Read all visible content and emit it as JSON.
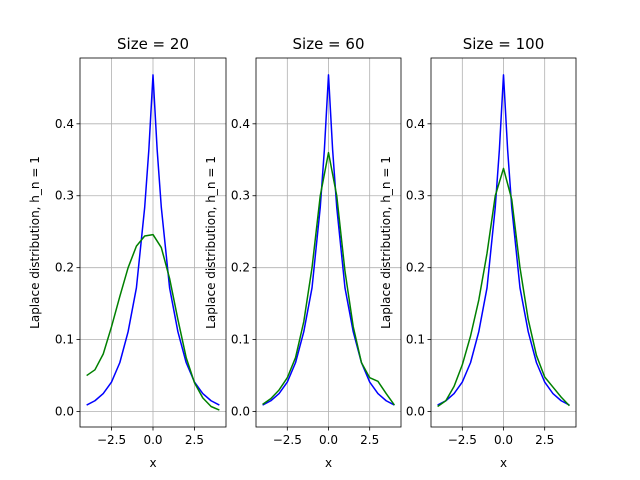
{
  "chart_data": [
    {
      "type": "line",
      "title": "Size = 20",
      "xlabel": "x",
      "ylabel": "Laplace distribution, h_n = 1",
      "xlim": [
        -4.4,
        4.4
      ],
      "ylim": [
        -0.0215,
        0.4915
      ],
      "xticks": [
        -2.5,
        0.0,
        2.5
      ],
      "xtick_labels": [
        "−2.5",
        "0.0",
        "2.5"
      ],
      "yticks": [
        0.0,
        0.1,
        0.2,
        0.3,
        0.4
      ],
      "ytick_labels": [
        "0.0",
        "0.1",
        "0.2",
        "0.3",
        "0.4"
      ],
      "grid": true,
      "series": [
        {
          "color": "#0000ff",
          "x": [
            -4,
            -3.5,
            -3,
            -2.5,
            -2,
            -1.5,
            -1,
            -0.5,
            -0.25,
            0,
            0.25,
            0.5,
            1,
            1.5,
            2,
            2.5,
            3,
            3.5,
            4
          ],
          "y": [
            0.009,
            0.015,
            0.025,
            0.041,
            0.068,
            0.111,
            0.172,
            0.284,
            0.364,
            0.468,
            0.364,
            0.284,
            0.172,
            0.111,
            0.068,
            0.041,
            0.025,
            0.015,
            0.009
          ]
        },
        {
          "color": "#008000",
          "x": [
            -4,
            -3.5,
            -3,
            -2.5,
            -2,
            -1.5,
            -1,
            -0.5,
            0,
            0.5,
            1,
            1.5,
            2,
            2.5,
            3,
            3.5,
            4
          ],
          "y": [
            0.05,
            0.058,
            0.08,
            0.118,
            0.16,
            0.2,
            0.23,
            0.244,
            0.246,
            0.228,
            0.185,
            0.128,
            0.075,
            0.04,
            0.019,
            0.007,
            0.002
          ]
        }
      ]
    },
    {
      "type": "line",
      "title": "Size = 60",
      "xlabel": "x",
      "ylabel": "Laplace distribution, h_n = 1",
      "xlim": [
        -4.4,
        4.4
      ],
      "ylim": [
        -0.0215,
        0.4915
      ],
      "xticks": [
        -2.5,
        0.0,
        2.5
      ],
      "xtick_labels": [
        "−2.5",
        "0.0",
        "2.5"
      ],
      "yticks": [
        0.0,
        0.1,
        0.2,
        0.3,
        0.4
      ],
      "ytick_labels": [
        "0.0",
        "0.1",
        "0.2",
        "0.3",
        "0.4"
      ],
      "grid": true,
      "series": [
        {
          "color": "#0000ff",
          "x": [
            -4,
            -3.5,
            -3,
            -2.5,
            -2,
            -1.5,
            -1,
            -0.5,
            -0.25,
            0,
            0.25,
            0.5,
            1,
            1.5,
            2,
            2.5,
            3,
            3.5,
            4
          ],
          "y": [
            0.009,
            0.015,
            0.025,
            0.041,
            0.068,
            0.111,
            0.172,
            0.284,
            0.364,
            0.468,
            0.364,
            0.284,
            0.172,
            0.111,
            0.068,
            0.041,
            0.025,
            0.015,
            0.009
          ]
        },
        {
          "color": "#008000",
          "x": [
            -4,
            -3.5,
            -3,
            -2.5,
            -2,
            -1.5,
            -1,
            -0.5,
            0,
            0.5,
            1,
            1.5,
            2,
            2.5,
            3,
            3.5,
            4
          ],
          "y": [
            0.01,
            0.018,
            0.03,
            0.047,
            0.075,
            0.125,
            0.2,
            0.3,
            0.36,
            0.3,
            0.195,
            0.118,
            0.068,
            0.047,
            0.042,
            0.025,
            0.009
          ]
        }
      ]
    },
    {
      "type": "line",
      "title": "Size = 100",
      "xlabel": "x",
      "ylabel": "Laplace distribution, h_n = 1",
      "xlim": [
        -4.4,
        4.4
      ],
      "ylim": [
        -0.0215,
        0.4915
      ],
      "xticks": [
        -2.5,
        0.0,
        2.5
      ],
      "xtick_labels": [
        "−2.5",
        "0.0",
        "2.5"
      ],
      "yticks": [
        0.0,
        0.1,
        0.2,
        0.3,
        0.4
      ],
      "ytick_labels": [
        "0.0",
        "0.1",
        "0.2",
        "0.3",
        "0.4"
      ],
      "grid": true,
      "series": [
        {
          "color": "#0000ff",
          "x": [
            -4,
            -3.5,
            -3,
            -2.5,
            -2,
            -1.5,
            -1,
            -0.5,
            -0.25,
            0,
            0.25,
            0.5,
            1,
            1.5,
            2,
            2.5,
            3,
            3.5,
            4
          ],
          "y": [
            0.009,
            0.015,
            0.025,
            0.041,
            0.068,
            0.111,
            0.172,
            0.284,
            0.364,
            0.468,
            0.364,
            0.284,
            0.172,
            0.111,
            0.068,
            0.041,
            0.025,
            0.015,
            0.009
          ]
        },
        {
          "color": "#008000",
          "x": [
            -4,
            -3.5,
            -3,
            -2.5,
            -2,
            -1.5,
            -1,
            -0.5,
            0,
            0.5,
            1,
            1.5,
            2,
            2.5,
            3,
            3.5,
            4
          ],
          "y": [
            0.007,
            0.015,
            0.035,
            0.065,
            0.105,
            0.155,
            0.22,
            0.3,
            0.338,
            0.295,
            0.2,
            0.128,
            0.078,
            0.048,
            0.034,
            0.02,
            0.008
          ]
        }
      ]
    }
  ]
}
